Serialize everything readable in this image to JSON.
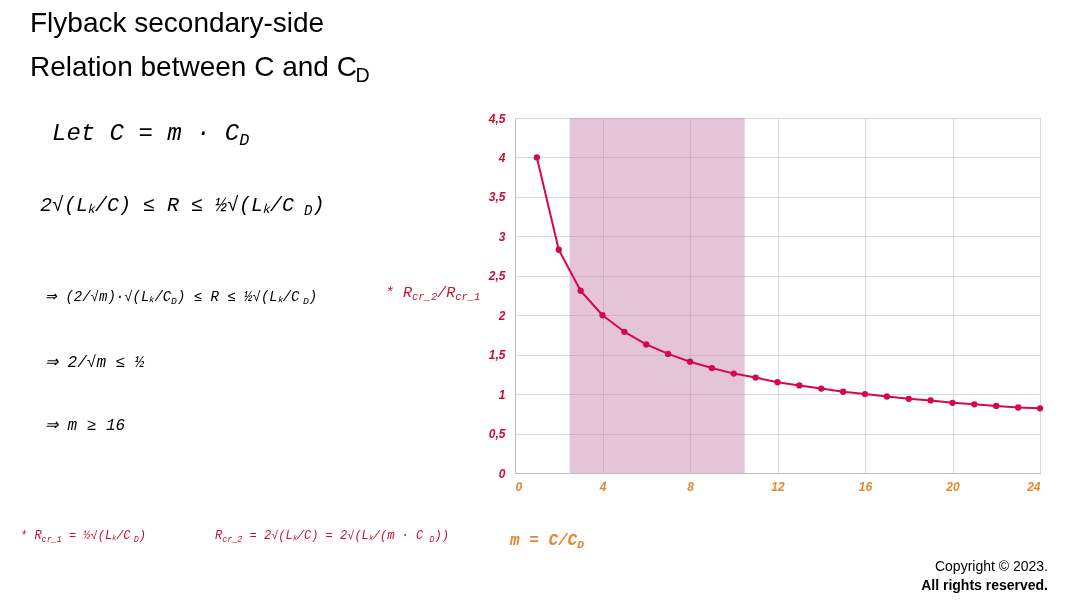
{
  "chart_data": {
    "type": "line",
    "title": "Flyback secondary-side",
    "subtitle": "Relation between C and C$_{D}$",
    "xlabel": "m = C/C$_{D}$",
    "ylabel": "* R$_{cr_2}$/R$_{cr_1}$",
    "x": [
      1,
      2,
      3,
      4,
      5,
      6,
      7,
      8,
      9,
      10,
      11,
      12,
      13,
      14,
      15,
      16,
      17,
      18,
      19,
      20,
      21,
      22,
      23,
      24
    ],
    "series": [
      {
        "color": "#d6084c",
        "values": [
          4,
          2.83,
          2.31,
          2,
          1.79,
          1.63,
          1.51,
          1.41,
          1.33,
          1.26,
          1.21,
          1.15,
          1.11,
          1.07,
          1.03,
          1,
          0.97,
          0.94,
          0.92,
          0.89,
          0.87,
          0.85,
          0.83,
          0.82
        ]
      }
    ],
    "xlim": [
      0,
      24
    ],
    "xticks": [
      0,
      4,
      8,
      12,
      16,
      20,
      24
    ],
    "ylim": [
      0,
      4.5
    ],
    "yticks": [
      0,
      {
        "value": 0.5,
        "label": "0,5"
      },
      1,
      {
        "value": 1.5,
        "label": "1,5"
      },
      2,
      {
        "value": 2.5,
        "label": "2,5"
      },
      3,
      {
        "value": 3.5,
        "label": "3,5"
      },
      4,
      {
        "value": 4.5,
        "label": "4,5"
      }
    ],
    "bands": [
      {
        "axis": "x",
        "from": 2.5,
        "to": 10.5,
        "color": "#c98bb2"
      }
    ],
    "grid": true,
    "marker": "circle",
    "line_style": "solid",
    "annotations": [
      "Let C = m · C$_{D}$",
      "2√(Lₖ/C) ≤ R ≤ ½√(Lₖ/C$_{D}$)",
      "⇒ (2/√m)·√(Lₖ/C$_{D}$) ≤ R ≤ ½√(Lₖ/C$_{D}$)",
      "⇒ 2/√m ≤ ½",
      "⇒ m ≥ 16",
      "* R$_{cr_1}$ = ½√(Lₖ/C$_{D}$)",
      "R$_{cr_2}$ = 2√(Lₖ/C) = 2√(Lₖ/(m · C$_{D}$))",
      "Copyright © 2023.",
      "All rights reserved."
    ]
  }
}
